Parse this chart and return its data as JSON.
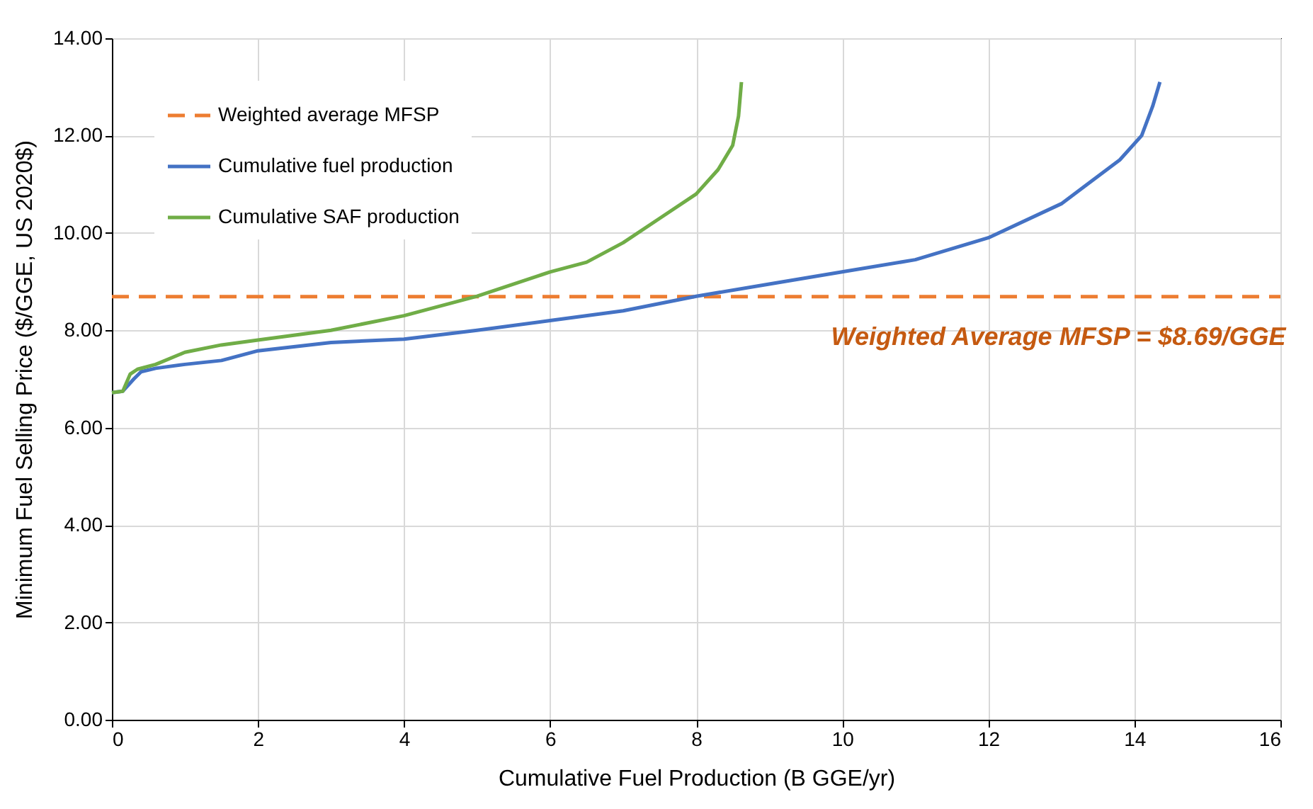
{
  "chart_data": {
    "type": "line",
    "xlabel": "Cumulative Fuel Production (B GGE/yr)",
    "ylabel": "Minimum Fuel Selling Price ($/GGE, US 2020$)",
    "xlim": [
      0,
      16
    ],
    "xticks": [
      0,
      2,
      4,
      6,
      8,
      10,
      12,
      14,
      16
    ],
    "ylim": [
      0,
      14
    ],
    "yticks": [
      {
        "value": 0,
        "label": "0.00"
      },
      {
        "value": 2,
        "label": "2.00"
      },
      {
        "value": 4,
        "label": "4.00"
      },
      {
        "value": 6,
        "label": "6.00"
      },
      {
        "value": 8,
        "label": "8.00"
      },
      {
        "value": 10,
        "label": "10.00"
      },
      {
        "value": 12,
        "label": "12.00"
      },
      {
        "value": 14,
        "label": "14.00"
      }
    ],
    "grid": true,
    "legend": "top left",
    "marker": "none",
    "series": [
      {
        "name": "Weighted average MFSP",
        "color": "#ed7d31",
        "line_style": "dashed",
        "x": [
          0,
          16
        ],
        "values": [
          8.69,
          8.69
        ]
      },
      {
        "name": "Cumulative fuel production",
        "color": "#4472c4",
        "line_style": "solid",
        "x": [
          0,
          0.15,
          0.3,
          0.4,
          0.6,
          1.0,
          1.5,
          2,
          3,
          4,
          5,
          6,
          7,
          8,
          9,
          10,
          11,
          12,
          13,
          13.8,
          14.1,
          14.25,
          14.35
        ],
        "values": [
          6.72,
          6.75,
          7.0,
          7.15,
          7.22,
          7.3,
          7.38,
          7.58,
          7.75,
          7.82,
          8.0,
          8.2,
          8.4,
          8.7,
          8.95,
          9.2,
          9.45,
          9.9,
          10.6,
          11.5,
          12.0,
          12.6,
          13.1
        ]
      },
      {
        "name": "Cumulative SAF production",
        "color": "#70ad47",
        "line_style": "solid",
        "x": [
          0,
          0.15,
          0.25,
          0.35,
          0.6,
          1,
          1.5,
          2,
          3,
          4,
          5,
          6,
          6.5,
          7,
          7.5,
          8,
          8.3,
          8.5,
          8.58,
          8.62
        ],
        "values": [
          6.72,
          6.75,
          7.1,
          7.2,
          7.3,
          7.55,
          7.7,
          7.8,
          8.0,
          8.3,
          8.7,
          9.2,
          9.4,
          9.8,
          10.3,
          10.8,
          11.3,
          11.8,
          12.4,
          13.1
        ]
      }
    ],
    "annotations": [
      "Weighted Average MFSP = $8.69/GGE"
    ]
  }
}
